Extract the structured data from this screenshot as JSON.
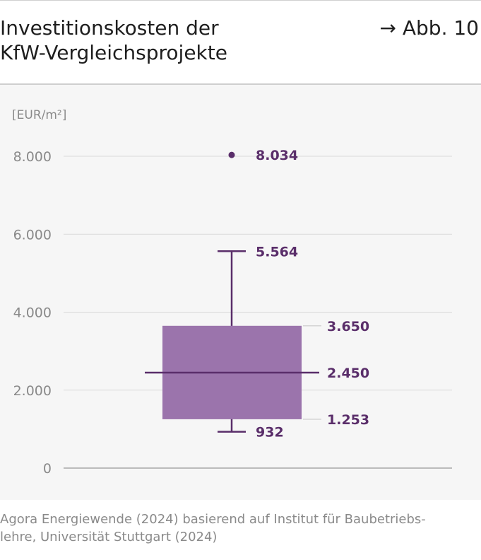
{
  "header": {
    "title": "Investitionskosten der\nKfW-Vergleichsprojekte",
    "figure_ref": "→ Abb. 10"
  },
  "footer": {
    "source": "Agora Energiewende (2024) basierend auf Institut für Baubetriebs-\nlehre, Universität Stuttgart (2024)"
  },
  "chart_data": {
    "type": "box",
    "ylabel": "[EUR/m²]",
    "ylim": [
      0,
      8000
    ],
    "yticks": [
      0,
      2000,
      4000,
      6000,
      8000
    ],
    "ytick_labels": [
      "0",
      "2.000",
      "4.000",
      "6.000",
      "8.000"
    ],
    "grid": true,
    "box": {
      "min": 932,
      "q1": 1253,
      "median": 2450,
      "q3": 3650,
      "max": 5564,
      "outliers": [
        8034
      ]
    },
    "value_labels": {
      "min": "932",
      "q1": "1.253",
      "median": "2.450",
      "q3": "3.650",
      "max": "5.564",
      "outlier": "8.034"
    },
    "colors": {
      "box_fill": "#9b74ac",
      "line": "#5a2e6a",
      "label": "#5a2e6a",
      "axis_text": "#8a8a8a",
      "grid": "#d9d9d9"
    }
  }
}
